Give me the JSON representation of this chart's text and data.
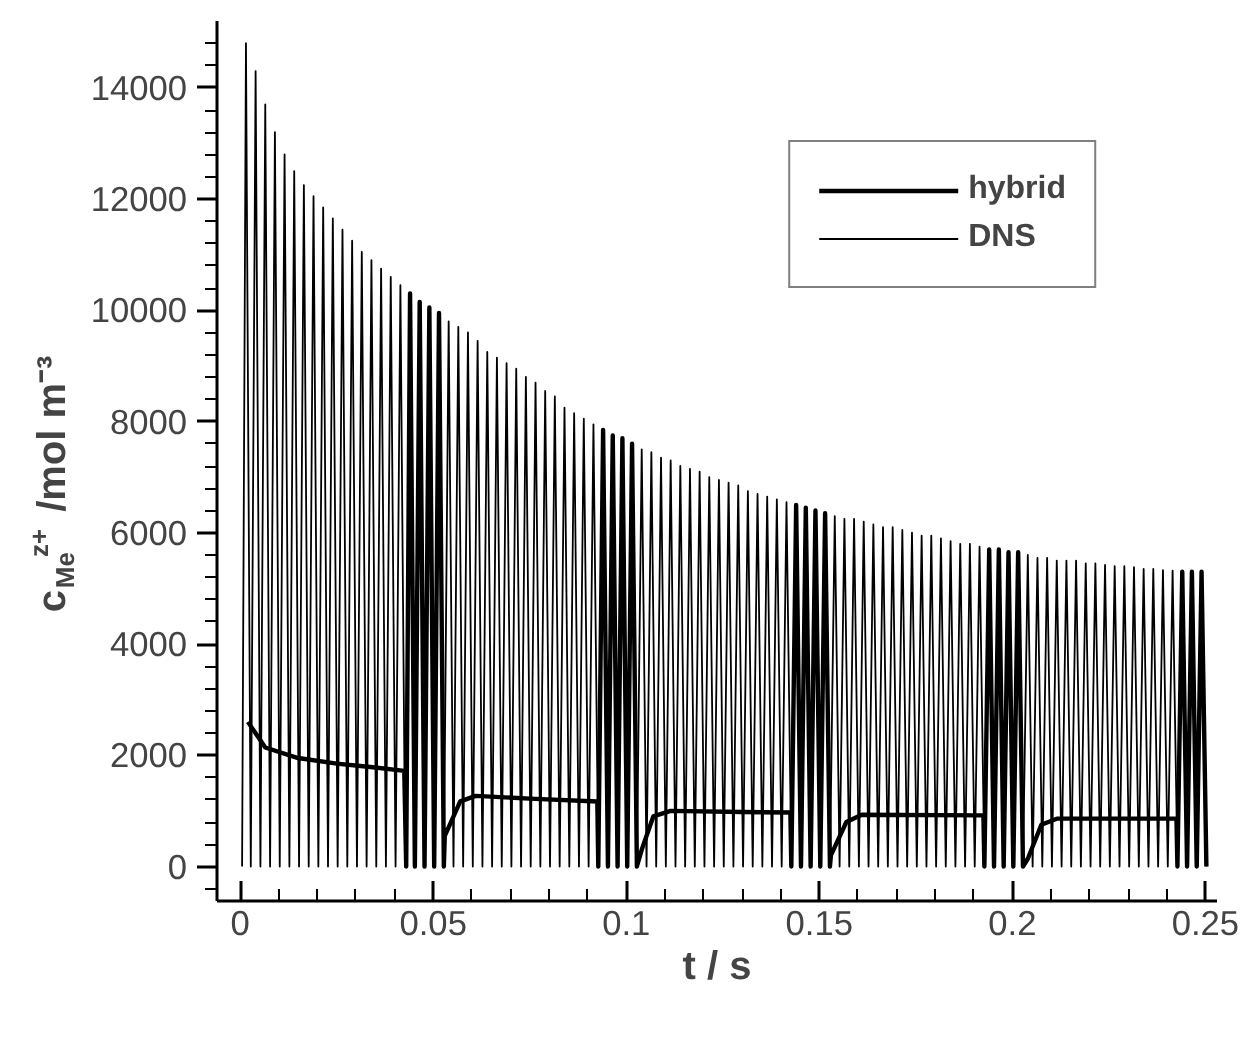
{
  "chart_data": {
    "type": "line",
    "xlabel": "t / s",
    "ylabel": "c$_{Me}$$^{z+}$ /mol m⁻³",
    "xlim": [
      -0.006,
      0.253
    ],
    "ylim": [
      -620,
      15200
    ],
    "xticks": [
      0,
      0.05,
      0.1,
      0.15,
      0.2,
      0.25,
      {
        "value": 0.01,
        "label": null
      },
      {
        "value": 0.02,
        "label": null
      },
      {
        "value": 0.03,
        "label": null
      },
      {
        "value": 0.04,
        "label": null
      },
      {
        "value": 0.06,
        "label": null
      },
      {
        "value": 0.07,
        "label": null
      },
      {
        "value": 0.08,
        "label": null
      },
      {
        "value": 0.09,
        "label": null
      },
      {
        "value": 0.11,
        "label": null
      },
      {
        "value": 0.12,
        "label": null
      },
      {
        "value": 0.13,
        "label": null
      },
      {
        "value": 0.14,
        "label": null
      },
      {
        "value": 0.16,
        "label": null
      },
      {
        "value": 0.17,
        "label": null
      },
      {
        "value": 0.18,
        "label": null
      },
      {
        "value": 0.19,
        "label": null
      },
      {
        "value": 0.21,
        "label": null
      },
      {
        "value": 0.22,
        "label": null
      },
      {
        "value": 0.23,
        "label": null
      },
      {
        "value": 0.24,
        "label": null
      }
    ],
    "yticks": [
      0,
      2000,
      4000,
      6000,
      8000,
      10000,
      12000,
      14000,
      {
        "value": -400,
        "label": null
      },
      {
        "value": 400,
        "label": null
      },
      {
        "value": 800,
        "label": null
      },
      {
        "value": 1200,
        "label": null
      },
      {
        "value": 1600,
        "label": null
      },
      {
        "value": 2400,
        "label": null
      },
      {
        "value": 2800,
        "label": null
      },
      {
        "value": 3200,
        "label": null
      },
      {
        "value": 3600,
        "label": null
      },
      {
        "value": 4400,
        "label": null
      },
      {
        "value": 4800,
        "label": null
      },
      {
        "value": 5200,
        "label": null
      },
      {
        "value": 5600,
        "label": null
      },
      {
        "value": 6400,
        "label": null
      },
      {
        "value": 6800,
        "label": null
      },
      {
        "value": 7200,
        "label": null
      },
      {
        "value": 7600,
        "label": null
      },
      {
        "value": 8400,
        "label": null
      },
      {
        "value": 8800,
        "label": null
      },
      {
        "value": 9200,
        "label": null
      },
      {
        "value": 9600,
        "label": null
      },
      {
        "value": 10400,
        "label": null
      },
      {
        "value": 10800,
        "label": null
      },
      {
        "value": 11200,
        "label": null
      },
      {
        "value": 11600,
        "label": null
      },
      {
        "value": 12400,
        "label": null
      },
      {
        "value": 12800,
        "label": null
      },
      {
        "value": 13200,
        "label": null
      },
      {
        "value": 13600,
        "label": null
      },
      {
        "value": 14400,
        "label": null
      },
      {
        "value": 14800,
        "label": null
      }
    ],
    "grid": false,
    "legend": "top right",
    "marker": "none",
    "line_style": "solid",
    "series": [
      {
        "name": "hybrid",
        "color": "#000000",
        "x": [
          0.002,
          0.0065,
          0.015,
          0.025,
          0.035,
          0.0425,
          0.043,
          0.044,
          0.04525,
          0.0465,
          0.04775,
          0.049,
          0.05025,
          0.0515,
          0.05275,
          0.053,
          0.057,
          0.061,
          0.075,
          0.0925,
          0.09275,
          0.094,
          0.09525,
          0.0965,
          0.09775,
          0.099,
          0.10025,
          0.1015,
          0.10275,
          0.104,
          0.107,
          0.1115,
          0.13,
          0.1425,
          0.14275,
          0.144,
          0.14525,
          0.1465,
          0.14775,
          0.149,
          0.15025,
          0.1515,
          0.15275,
          0.153,
          0.157,
          0.161,
          0.1925,
          0.19275,
          0.194,
          0.19525,
          0.1965,
          0.19775,
          0.199,
          0.20025,
          0.2015,
          0.20275,
          0.204,
          0.2075,
          0.2115,
          0.2425,
          0.24275,
          0.244,
          0.24525,
          0.2465,
          0.24775,
          0.249,
          0.25025
        ],
        "values": [
          2600,
          2140,
          1950,
          1850,
          1780,
          1720,
          0,
          10300,
          0,
          10150,
          0,
          10050,
          0,
          9950,
          0,
          550,
          1170,
          1270,
          1220,
          1170,
          0,
          7850,
          0,
          7750,
          0,
          7700,
          0,
          7600,
          0,
          300,
          900,
          1000,
          980,
          970,
          0,
          6500,
          0,
          6450,
          0,
          6400,
          0,
          6350,
          0,
          200,
          800,
          930,
          920,
          0,
          5700,
          0,
          5700,
          0,
          5650,
          0,
          5650,
          0,
          140,
          750,
          860,
          860,
          0,
          5300,
          0,
          5300,
          0,
          5300,
          0
        ]
      },
      {
        "name": "DNS",
        "color": "#000000",
        "x": [
          0.0005,
          0.0015,
          0.00275,
          0.004,
          0.00525,
          0.0065,
          0.00775,
          0.009,
          0.01025,
          0.0115,
          0.01275,
          0.014,
          0.01525,
          0.0165,
          0.01775,
          0.019,
          0.02025,
          0.0215,
          0.02275,
          0.024,
          0.02525,
          0.0265,
          0.02775,
          0.029,
          0.03025,
          0.0315,
          0.03275,
          0.034,
          0.03525,
          0.0365,
          0.03775,
          0.039,
          0.04025,
          0.0415,
          0.04275,
          0.044,
          0.04525,
          0.0465,
          0.04775,
          0.049,
          0.05025,
          0.0515,
          0.05275,
          0.054,
          0.05525,
          0.0565,
          0.05775,
          0.059,
          0.06025,
          0.0615,
          0.06275,
          0.064,
          0.06525,
          0.0665,
          0.06775,
          0.069,
          0.07025,
          0.0715,
          0.07275,
          0.074,
          0.07525,
          0.0765,
          0.07775,
          0.079,
          0.08025,
          0.0815,
          0.08275,
          0.084,
          0.08525,
          0.0865,
          0.08775,
          0.089,
          0.09025,
          0.0915,
          0.09275,
          0.094,
          0.09525,
          0.0965,
          0.09775,
          0.099,
          0.10025,
          0.1015,
          0.10275,
          0.104,
          0.10525,
          0.1065,
          0.10775,
          0.109,
          0.11025,
          0.1115,
          0.11275,
          0.114,
          0.11525,
          0.1165,
          0.11775,
          0.119,
          0.12025,
          0.1215,
          0.12275,
          0.124,
          0.12525,
          0.1265,
          0.12775,
          0.129,
          0.13025,
          0.1315,
          0.13275,
          0.134,
          0.13525,
          0.1365,
          0.13775,
          0.139,
          0.14025,
          0.1415,
          0.14275,
          0.144,
          0.14525,
          0.1465,
          0.14775,
          0.149,
          0.15025,
          0.1515,
          0.15275,
          0.154,
          0.15525,
          0.1565,
          0.15775,
          0.159,
          0.16025,
          0.1615,
          0.16275,
          0.164,
          0.16525,
          0.1665,
          0.16775,
          0.169,
          0.17025,
          0.1715,
          0.17275,
          0.174,
          0.17525,
          0.1765,
          0.17775,
          0.179,
          0.18025,
          0.1815,
          0.18275,
          0.184,
          0.18525,
          0.1865,
          0.18775,
          0.189,
          0.19025,
          0.1915,
          0.19275,
          0.194,
          0.19525,
          0.1965,
          0.19775,
          0.199,
          0.20025,
          0.2015,
          0.20275,
          0.204,
          0.20525,
          0.2065,
          0.20775,
          0.209,
          0.21025,
          0.2115,
          0.21275,
          0.214,
          0.21525,
          0.2165,
          0.21775,
          0.219,
          0.22025,
          0.2215,
          0.22275,
          0.224,
          0.22525,
          0.2265,
          0.22775,
          0.229,
          0.23025,
          0.2315,
          0.23275,
          0.234,
          0.23525,
          0.2365,
          0.23775,
          0.239,
          0.24025,
          0.2415,
          0.24275,
          0.244,
          0.24525,
          0.2465,
          0.24775,
          0.249,
          0.25025
        ],
        "values": [
          0,
          14800,
          0,
          14300,
          0,
          13700,
          0,
          13200,
          0,
          12800,
          0,
          12500,
          0,
          12250,
          0,
          12050,
          0,
          11850,
          0,
          11650,
          0,
          11450,
          0,
          11250,
          0,
          11050,
          0,
          10900,
          0,
          10750,
          0,
          10600,
          0,
          10450,
          0,
          10300,
          0,
          10150,
          0,
          10050,
          0,
          9950,
          0,
          9800,
          0,
          9700,
          0,
          9600,
          0,
          9450,
          0,
          9250,
          0,
          9150,
          0,
          9050,
          0,
          8950,
          0,
          8800,
          0,
          8700,
          0,
          8550,
          0,
          8450,
          0,
          8250,
          0,
          8150,
          0,
          8050,
          0,
          7950,
          0,
          7850,
          0,
          7750,
          0,
          7700,
          0,
          7600,
          0,
          7500,
          0,
          7450,
          0,
          7350,
          0,
          7300,
          0,
          7200,
          0,
          7150,
          0,
          7100,
          0,
          7000,
          0,
          6950,
          0,
          6900,
          0,
          6850,
          0,
          6750,
          0,
          6700,
          0,
          6650,
          0,
          6600,
          0,
          6550,
          0,
          6500,
          0,
          6450,
          0,
          6400,
          0,
          6350,
          0,
          6300,
          0,
          6250,
          0,
          6250,
          0,
          6200,
          0,
          6150,
          0,
          6100,
          0,
          6100,
          0,
          6050,
          0,
          6000,
          0,
          5950,
          0,
          5950,
          0,
          5900,
          0,
          5850,
          0,
          5800,
          0,
          5800,
          0,
          5750,
          0,
          5700,
          0,
          5700,
          0,
          5650,
          0,
          5650,
          0,
          5600,
          0,
          5550,
          0,
          5550,
          0,
          5500,
          0,
          5500,
          0,
          5500,
          0,
          5450,
          0,
          5450,
          0,
          5420,
          0,
          5400,
          0,
          5400,
          0,
          5380,
          0,
          5350,
          0,
          5350,
          0,
          5330,
          0,
          5320,
          0,
          5300,
          0,
          5300,
          0,
          5300,
          0
        ]
      }
    ]
  }
}
